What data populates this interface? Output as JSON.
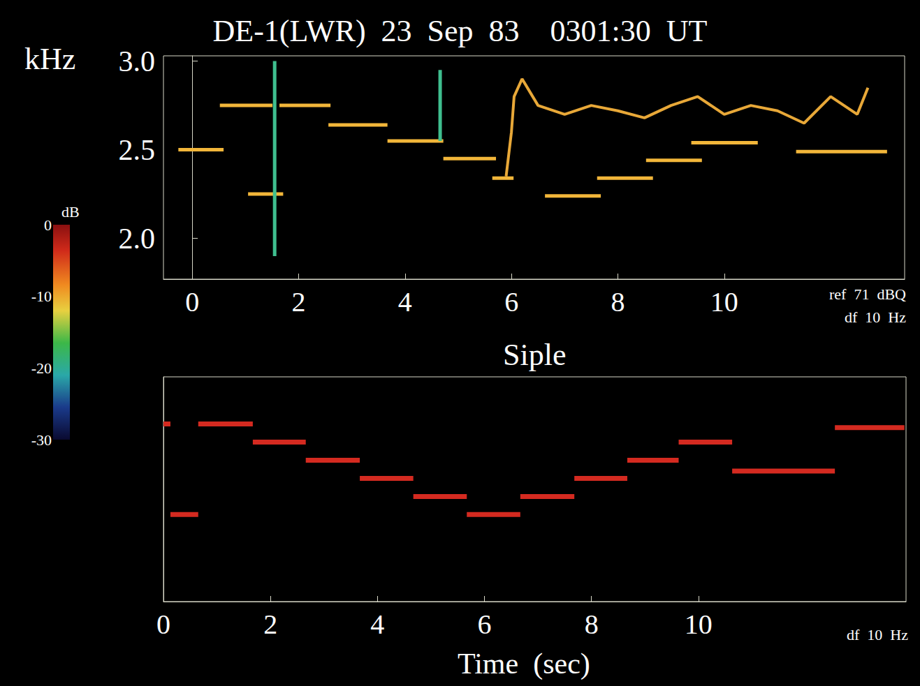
{
  "chart_data": [
    {
      "type": "line",
      "title": "DE-1(LWR)  23  Sep  83    0301:30  UT",
      "y_label": "kHz",
      "annotations": [
        "ref  71  dBQ",
        "df  10  Hz"
      ],
      "xlim": [
        -0.54,
        13.39
      ],
      "xticks": [
        0,
        2,
        4,
        6,
        8,
        10
      ],
      "ylim": [
        1.77,
        3.03
      ],
      "yticks": [
        {
          "value": 2,
          "label": "2.0"
        },
        2.5,
        {
          "value": 3,
          "label": "3.0"
        }
      ],
      "grid": false,
      "colorbar": {
        "label": "dB",
        "range": [
          -30,
          0
        ],
        "ticks": [
          0,
          -10,
          -20,
          -30
        ]
      },
      "series": [
        {
          "type": "line",
          "color": "#f2b63a",
          "line_style": "solid",
          "segments": [
            {
              "x": [
                -0.26,
                0.59
              ],
              "values": [
                2.5,
                2.5
              ]
            },
            {
              "x": [
                0.52,
                1.51
              ],
              "values": [
                2.75,
                2.75
              ]
            },
            {
              "x": [
                1.05,
                1.71
              ],
              "values": [
                2.25,
                2.25
              ]
            },
            {
              "x": [
                1.64,
                2.6
              ],
              "values": [
                2.75,
                2.75
              ]
            },
            {
              "x": [
                2.56,
                3.67
              ],
              "values": [
                2.64,
                2.64
              ]
            },
            {
              "x": [
                3.67,
                4.72
              ],
              "values": [
                2.55,
                2.55
              ]
            },
            {
              "x": [
                4.72,
                5.71
              ],
              "values": [
                2.45,
                2.45
              ]
            },
            {
              "x": [
                5.64,
                6.04
              ],
              "values": [
                2.34,
                2.34
              ]
            },
            {
              "x": [
                6.63,
                7.68
              ],
              "values": [
                2.24,
                2.24
              ]
            },
            {
              "x": [
                7.61,
                8.66
              ],
              "values": [
                2.34,
                2.34
              ]
            },
            {
              "x": [
                8.53,
                9.58
              ],
              "values": [
                2.44,
                2.44
              ]
            },
            {
              "x": [
                9.38,
                10.63
              ],
              "values": [
                2.54,
                2.54
              ]
            },
            {
              "x": [
                11.35,
                13.06
              ],
              "values": [
                2.49,
                2.49
              ]
            }
          ]
        },
        {
          "type": "line",
          "color": "#3fbf8f",
          "line_style": "solid",
          "segments": [
            {
              "x": [
                1.55,
                1.55
              ],
              "values": [
                1.9,
                3.0
              ]
            },
            {
              "x": [
                4.66,
                4.66
              ],
              "values": [
                2.55,
                2.95
              ]
            }
          ]
        },
        {
          "type": "line",
          "color": "#e8a838",
          "line_style": "solid",
          "x": [
            5.9,
            6.0,
            6.05,
            6.2,
            6.5,
            7.0,
            7.5,
            8.0,
            8.5,
            9.0,
            9.5,
            10.0,
            10.5,
            11.0,
            11.5,
            12.0,
            12.5,
            12.7
          ],
          "values": [
            2.35,
            2.6,
            2.8,
            2.9,
            2.75,
            2.7,
            2.75,
            2.72,
            2.68,
            2.75,
            2.8,
            2.7,
            2.75,
            2.72,
            2.65,
            2.8,
            2.7,
            2.85
          ]
        }
      ]
    },
    {
      "type": "line",
      "title": "Siple",
      "x_label": "Time  (sec)",
      "annotations": [
        "df  10  Hz"
      ],
      "xlim": [
        0,
        13.88
      ],
      "xticks": [
        0,
        2,
        4,
        6,
        8,
        10
      ],
      "ylim": [
        1.77,
        3.01
      ],
      "tick_labels": "x",
      "grid": false,
      "series": [
        {
          "type": "line",
          "color": "#d42a20",
          "line_style": "solid",
          "segments": [
            {
              "x": [
                0,
                0.13
              ],
              "values": [
                2.75,
                2.75
              ]
            },
            {
              "x": [
                0.13,
                0.65
              ],
              "values": [
                2.25,
                2.25
              ]
            },
            {
              "x": [
                0.65,
                1.67
              ],
              "values": [
                2.75,
                2.75
              ]
            },
            {
              "x": [
                1.67,
                2.66
              ],
              "values": [
                2.65,
                2.65
              ]
            },
            {
              "x": [
                2.66,
                3.67
              ],
              "values": [
                2.55,
                2.55
              ]
            },
            {
              "x": [
                3.67,
                4.67
              ],
              "values": [
                2.45,
                2.45
              ]
            },
            {
              "x": [
                4.67,
                5.67
              ],
              "values": [
                2.35,
                2.35
              ]
            },
            {
              "x": [
                5.67,
                6.67
              ],
              "values": [
                2.25,
                2.25
              ]
            },
            {
              "x": [
                6.67,
                7.68
              ],
              "values": [
                2.35,
                2.35
              ]
            },
            {
              "x": [
                7.68,
                8.67
              ],
              "values": [
                2.45,
                2.45
              ]
            },
            {
              "x": [
                8.67,
                9.63
              ],
              "values": [
                2.55,
                2.55
              ]
            },
            {
              "x": [
                9.63,
                10.63
              ],
              "values": [
                2.65,
                2.65
              ]
            },
            {
              "x": [
                10.63,
                12.55
              ],
              "values": [
                2.49,
                2.49
              ]
            },
            {
              "x": [
                12.55,
                13.85
              ],
              "values": [
                2.73,
                2.73
              ]
            }
          ]
        }
      ]
    }
  ]
}
